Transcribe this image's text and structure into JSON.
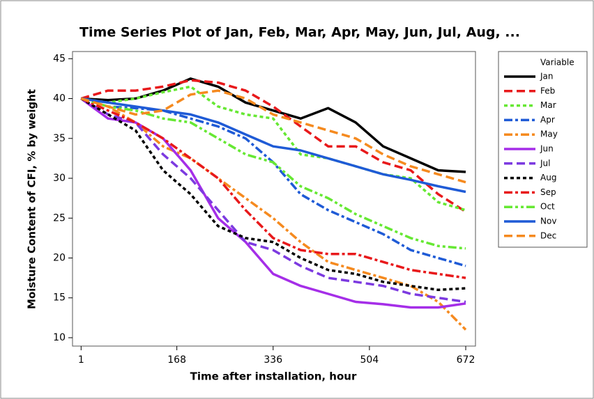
{
  "chart_data": {
    "type": "line",
    "title": "Time Series Plot of Jan, Feb, Mar, Apr, May, Jun, Jul, Aug, ...",
    "x_label": "Time after installation, hour",
    "y_label": "Moisture Content of CFI, % by weight",
    "legend_title": "Variable",
    "x": [
      1,
      48,
      96,
      144,
      192,
      240,
      288,
      336,
      384,
      432,
      480,
      528,
      576,
      624,
      672
    ],
    "xlim": [
      -14,
      689
    ],
    "xticks": [
      1,
      168,
      336,
      504,
      672
    ],
    "ylim": [
      8.95,
      45.9
    ],
    "yticks": [
      10,
      15,
      20,
      25,
      30,
      35,
      40,
      45
    ],
    "series": [
      {
        "name": "Jan",
        "color": "#000000",
        "dash": "solid",
        "values": [
          40,
          39.8,
          40,
          41,
          42.5,
          41.5,
          39.5,
          38.5,
          37.5,
          38.8,
          37,
          34,
          32.5,
          31,
          30.8
        ]
      },
      {
        "name": "Feb",
        "color": "#e8191b",
        "dash": "dashed",
        "values": [
          40,
          41,
          41,
          41.5,
          42.3,
          42,
          41,
          39,
          36.5,
          34,
          34,
          32,
          31,
          28,
          25.8
        ]
      },
      {
        "name": "Mar",
        "color": "#66e833",
        "dash": "dotted",
        "values": [
          40,
          39.5,
          40,
          40.8,
          41.5,
          39,
          38,
          37.5,
          33,
          32.5,
          31.5,
          30.5,
          30,
          27,
          26
        ]
      },
      {
        "name": "Apr",
        "color": "#1f5bd6",
        "dash": "dashdot",
        "values": [
          40,
          39,
          38.8,
          38.5,
          37.5,
          36.5,
          35,
          32,
          28,
          26,
          24.5,
          23,
          21,
          20,
          19
        ]
      },
      {
        "name": "May",
        "color": "#f58a1f",
        "dash": "dashdot",
        "values": [
          40,
          39,
          37,
          34,
          32.5,
          30,
          27.5,
          25,
          22,
          19.5,
          18.5,
          17.5,
          16.5,
          14.5,
          11
        ]
      },
      {
        "name": "Jun",
        "color": "#a52ee8",
        "dash": "solid",
        "values": [
          40,
          37.5,
          37,
          35,
          31,
          25,
          22,
          18,
          16.5,
          15.5,
          14.5,
          14.2,
          13.8,
          13.8,
          14.3
        ]
      },
      {
        "name": "Jul",
        "color": "#7c3ae0",
        "dash": "dashed",
        "values": [
          40,
          38,
          37,
          33,
          30,
          26,
          22,
          21,
          19,
          17.5,
          17,
          16.5,
          15.5,
          15,
          14.5
        ]
      },
      {
        "name": "Aug",
        "color": "#000000",
        "dash": "dotted",
        "values": [
          40,
          38,
          36,
          31,
          28,
          24,
          22.5,
          22,
          20,
          18.5,
          18,
          17,
          16.5,
          16,
          16.2
        ]
      },
      {
        "name": "Sep",
        "color": "#e8191b",
        "dash": "dashdot",
        "values": [
          40,
          38.5,
          37,
          35,
          32.5,
          30,
          26,
          22.5,
          21,
          20.5,
          20.5,
          19.5,
          18.5,
          18,
          17.5
        ]
      },
      {
        "name": "Oct",
        "color": "#66e833",
        "dash": "dashdotdot",
        "values": [
          40,
          39,
          38.5,
          37.5,
          37,
          35,
          33,
          32,
          29,
          27.5,
          25.5,
          24,
          22.5,
          21.5,
          21.2
        ]
      },
      {
        "name": "Nov",
        "color": "#1f5bd6",
        "dash": "solid",
        "values": [
          40,
          39.5,
          39,
          38.5,
          38,
          37,
          35.5,
          34,
          33.5,
          32.5,
          31.5,
          30.5,
          29.8,
          29,
          28.3
        ]
      },
      {
        "name": "Dec",
        "color": "#f58a1f",
        "dash": "dashed",
        "values": [
          40,
          39,
          38,
          38.5,
          40.5,
          41,
          40,
          38,
          37,
          36,
          35,
          33,
          31.5,
          30.5,
          29.5
        ]
      }
    ]
  }
}
